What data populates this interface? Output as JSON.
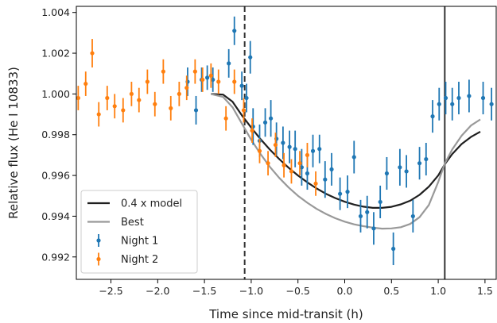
{
  "chart_data": {
    "type": "scatter",
    "xlabel": "Time since mid-transit (h)",
    "ylabel": "Relative flux (He I 10833)",
    "xlim": [
      -2.87,
      1.62
    ],
    "ylim": [
      0.9909,
      1.0043
    ],
    "xticks": [
      -2.5,
      -2.0,
      -1.5,
      -1.0,
      -0.5,
      0.0,
      0.5,
      1.0,
      1.5
    ],
    "xtick_labels": [
      "−2.5",
      "−2.0",
      "−1.5",
      "−1.0",
      "−0.5",
      "0.0",
      "0.5",
      "1.0",
      "1.5"
    ],
    "yticks": [
      0.992,
      0.994,
      0.996,
      0.998,
      1.0,
      1.002,
      1.004
    ],
    "ytick_labels": [
      "0.992",
      "0.994",
      "0.996",
      "0.998",
      "1.000",
      "1.002",
      "1.004"
    ],
    "grid": false,
    "legend_position": "lower-left",
    "vlines": [
      {
        "x": -1.07,
        "style": "dashed",
        "color": "#333333"
      },
      {
        "x": 1.07,
        "style": "solid",
        "color": "#333333"
      }
    ],
    "series": [
      {
        "name": "0.4 x model",
        "kind": "line",
        "color": "#1f1f1f",
        "x": [
          -1.43,
          -1.3,
          -1.2,
          -1.1,
          -1.0,
          -0.9,
          -0.8,
          -0.7,
          -0.6,
          -0.5,
          -0.4,
          -0.3,
          -0.2,
          -0.1,
          0.0,
          0.1,
          0.2,
          0.3,
          0.4,
          0.5,
          0.6,
          0.7,
          0.8,
          0.9,
          1.0,
          1.07,
          1.15,
          1.25,
          1.35,
          1.45
        ],
        "y": [
          1.0,
          0.99997,
          0.99962,
          0.99895,
          0.99835,
          0.99778,
          0.99727,
          0.9968,
          0.99638,
          0.996,
          0.99566,
          0.99536,
          0.9951,
          0.99489,
          0.99471,
          0.99457,
          0.99447,
          0.99441,
          0.99441,
          0.99446,
          0.99458,
          0.99476,
          0.99505,
          0.99545,
          0.996,
          0.99655,
          0.99705,
          0.99754,
          0.99789,
          0.99815
        ]
      },
      {
        "name": "Best",
        "kind": "line",
        "color": "#999999",
        "x": [
          -1.43,
          -1.3,
          -1.2,
          -1.1,
          -1.0,
          -0.9,
          -0.8,
          -0.7,
          -0.6,
          -0.5,
          -0.4,
          -0.3,
          -0.2,
          -0.1,
          0.0,
          0.1,
          0.2,
          0.3,
          0.4,
          0.5,
          0.6,
          0.7,
          0.8,
          0.9,
          1.0,
          1.07,
          1.15,
          1.25,
          1.35,
          1.45
        ],
        "y": [
          1.0,
          0.99985,
          0.99935,
          0.99855,
          0.99775,
          0.99705,
          0.99642,
          0.99588,
          0.99541,
          0.995,
          0.99466,
          0.99436,
          0.99411,
          0.9939,
          0.99373,
          0.9936,
          0.99351,
          0.99344,
          0.99339,
          0.9934,
          0.99346,
          0.99362,
          0.99395,
          0.99455,
          0.99568,
          0.99658,
          0.99728,
          0.99795,
          0.99845,
          0.99875
        ]
      },
      {
        "name": "Night 1",
        "kind": "errorbar",
        "color": "#1f77b4",
        "x": [
          -1.68,
          -1.59,
          -1.53,
          -1.47,
          -1.41,
          -1.24,
          -1.18,
          -1.1,
          -1.05,
          -1.01,
          -0.98,
          -0.91,
          -0.85,
          -0.79,
          -0.73,
          -0.66,
          -0.59,
          -0.53,
          -0.46,
          -0.4,
          -0.34,
          -0.27,
          -0.21,
          -0.14,
          -0.05,
          0.03,
          0.1,
          0.17,
          0.24,
          0.31,
          0.38,
          0.45,
          0.52,
          0.59,
          0.66,
          0.73,
          0.8,
          0.87,
          0.94,
          1.01,
          1.08,
          1.15,
          1.22,
          1.33,
          1.48,
          1.57
        ],
        "y": [
          1.0006,
          0.9992,
          1.0007,
          1.0008,
          1.0007,
          1.0015,
          1.0031,
          1.0004,
          0.9998,
          1.0018,
          0.9984,
          0.9977,
          0.9986,
          0.9988,
          0.9978,
          0.9976,
          0.9974,
          0.9973,
          0.9964,
          0.9961,
          0.9972,
          0.9973,
          0.9958,
          0.9963,
          0.9951,
          0.9952,
          0.9969,
          0.994,
          0.9942,
          0.9934,
          0.9947,
          0.9961,
          0.9924,
          0.9964,
          0.9962,
          0.994,
          0.9966,
          0.9968,
          0.9989,
          0.9995,
          0.9998,
          0.9995,
          0.9998,
          0.9999,
          0.9998,
          0.9995
        ],
        "yerr": [
          0.0007,
          0.0007,
          0.0006,
          0.0006,
          0.0006,
          0.0007,
          0.0007,
          0.0007,
          0.0007,
          0.0008,
          0.0009,
          0.0008,
          0.0007,
          0.0009,
          0.0008,
          0.0008,
          0.0008,
          0.0009,
          0.0009,
          0.0008,
          0.0008,
          0.0007,
          0.0009,
          0.0008,
          0.0008,
          0.0008,
          0.0008,
          0.0008,
          0.0008,
          0.0008,
          0.0008,
          0.0008,
          0.0008,
          0.0009,
          0.0008,
          0.0008,
          0.0008,
          0.0008,
          0.0008,
          0.0008,
          0.0008,
          0.0008,
          0.0008,
          0.0008,
          0.0008,
          0.0008
        ]
      },
      {
        "name": "Night 2",
        "kind": "errorbar",
        "color": "#ff7f0e",
        "x": [
          -2.85,
          -2.77,
          -2.7,
          -2.63,
          -2.54,
          -2.46,
          -2.37,
          -2.28,
          -2.2,
          -2.11,
          -2.03,
          -1.94,
          -1.86,
          -1.77,
          -1.69,
          -1.6,
          -1.52,
          -1.43,
          -1.35,
          -1.27,
          -1.18,
          -1.08,
          -0.99,
          -0.91,
          -0.82,
          -0.74,
          -0.65,
          -0.57,
          -0.48,
          -0.4,
          -0.31
        ],
        "y": [
          0.9998,
          1.0005,
          1.002,
          0.999,
          0.9998,
          0.9994,
          0.9992,
          1.0,
          0.9997,
          1.0006,
          0.9995,
          1.0011,
          0.9993,
          1.0,
          1.0003,
          1.0011,
          1.0007,
          1.0009,
          1.0006,
          0.9988,
          1.0006,
          0.9992,
          0.9982,
          0.9972,
          0.9966,
          0.9975,
          0.9965,
          0.9962,
          0.9966,
          0.997,
          0.9956
        ],
        "yerr": [
          0.0006,
          0.0006,
          0.0007,
          0.0006,
          0.0006,
          0.0006,
          0.0006,
          0.0006,
          0.0006,
          0.0006,
          0.0006,
          0.0006,
          0.0006,
          0.0006,
          0.0006,
          0.0006,
          0.0006,
          0.0006,
          0.0006,
          0.0006,
          0.0006,
          0.0006,
          0.0006,
          0.0006,
          0.0006,
          0.0006,
          0.0006,
          0.0006,
          0.0006,
          0.0006,
          0.0006
        ]
      }
    ],
    "legend_entries": [
      "0.4 x model",
      "Best",
      "Night 1",
      "Night 2"
    ]
  }
}
